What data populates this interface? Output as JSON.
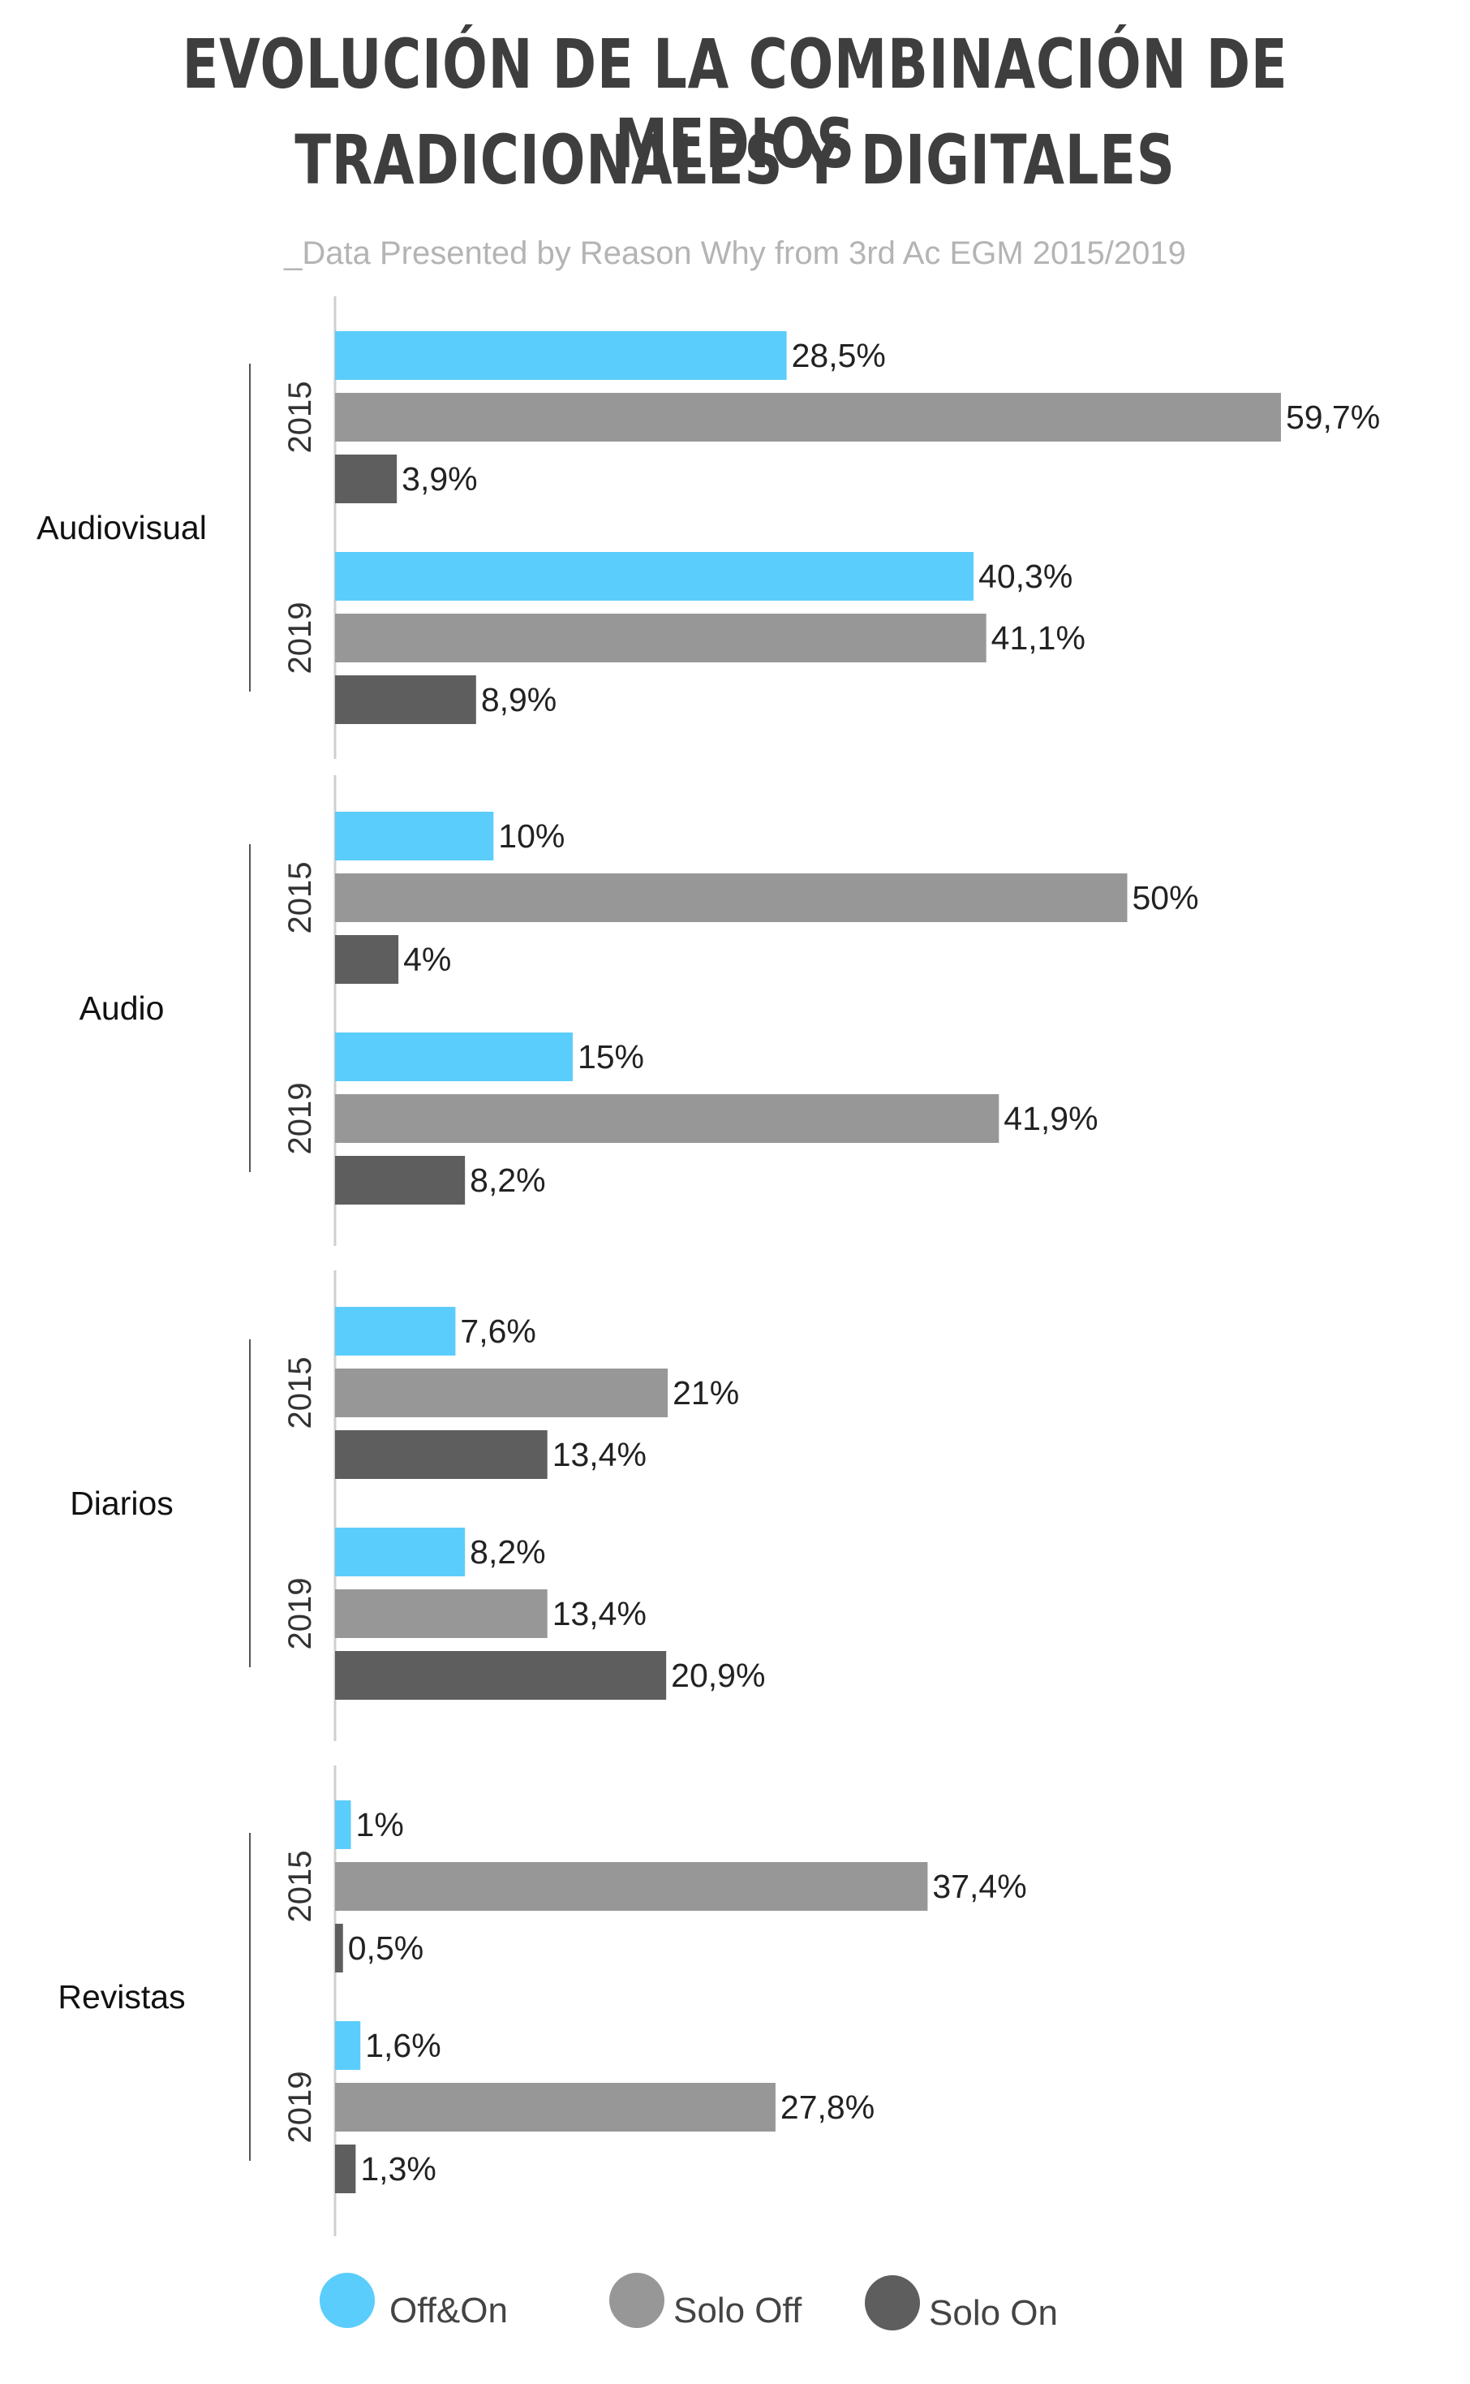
{
  "title_line1": "EVOLUCIÓN DE LA COMBINACIÓN DE MEDIOS",
  "title_line2": "TRADICIONALES Y DIGITALES",
  "subtitle": "_Data Presented by Reason Why from 3rd Ac EGM 2015/2019",
  "chart_data": {
    "type": "bar",
    "orientation": "horizontal",
    "title": "EVOLUCIÓN DE LA COMBINACIÓN DE MEDIOS TRADICIONALES Y DIGITALES",
    "subtitle": "_Data Presented by Reason Why from 3rd Ac EGM 2015/2019",
    "xlim": [
      0,
      62
    ],
    "grid": false,
    "legend_position": "bottom",
    "series": [
      {
        "name": "Off&On",
        "color": "#5bcdfc"
      },
      {
        "name": "Solo Off",
        "color": "#979797"
      },
      {
        "name": "Solo On",
        "color": "#5e5e5e"
      }
    ],
    "groups": [
      {
        "category": "Audiovisual",
        "years": [
          {
            "year": "2015",
            "values": [
              28.5,
              59.7,
              3.9
            ],
            "labels": [
              "28,5%",
              "59,7%",
              "3,9%"
            ]
          },
          {
            "year": "2019",
            "values": [
              40.3,
              41.1,
              8.9
            ],
            "labels": [
              "40,3%",
              "41,1%",
              "8,9%"
            ]
          }
        ]
      },
      {
        "category": "Audio",
        "years": [
          {
            "year": "2015",
            "values": [
              10,
              50,
              4
            ],
            "labels": [
              "10%",
              "50%",
              "4%"
            ]
          },
          {
            "year": "2019",
            "values": [
              15,
              41.9,
              8.2
            ],
            "labels": [
              "15%",
              "41,9%",
              "8,2%"
            ]
          }
        ]
      },
      {
        "category": "Diarios",
        "years": [
          {
            "year": "2015",
            "values": [
              7.6,
              21,
              13.4
            ],
            "labels": [
              "7,6%",
              "21%",
              "13,4%"
            ]
          },
          {
            "year": "2019",
            "values": [
              8.2,
              13.4,
              20.9
            ],
            "labels": [
              "8,2%",
              "13,4%",
              "20,9%"
            ]
          }
        ]
      },
      {
        "category": "Revistas",
        "years": [
          {
            "year": "2015",
            "values": [
              1,
              37.4,
              0.5
            ],
            "labels": [
              "1%",
              "37,4%",
              "0,5%"
            ]
          },
          {
            "year": "2019",
            "values": [
              1.6,
              27.8,
              1.3
            ],
            "labels": [
              "1,6%",
              "27,8%",
              "1,3%"
            ]
          }
        ]
      }
    ]
  }
}
